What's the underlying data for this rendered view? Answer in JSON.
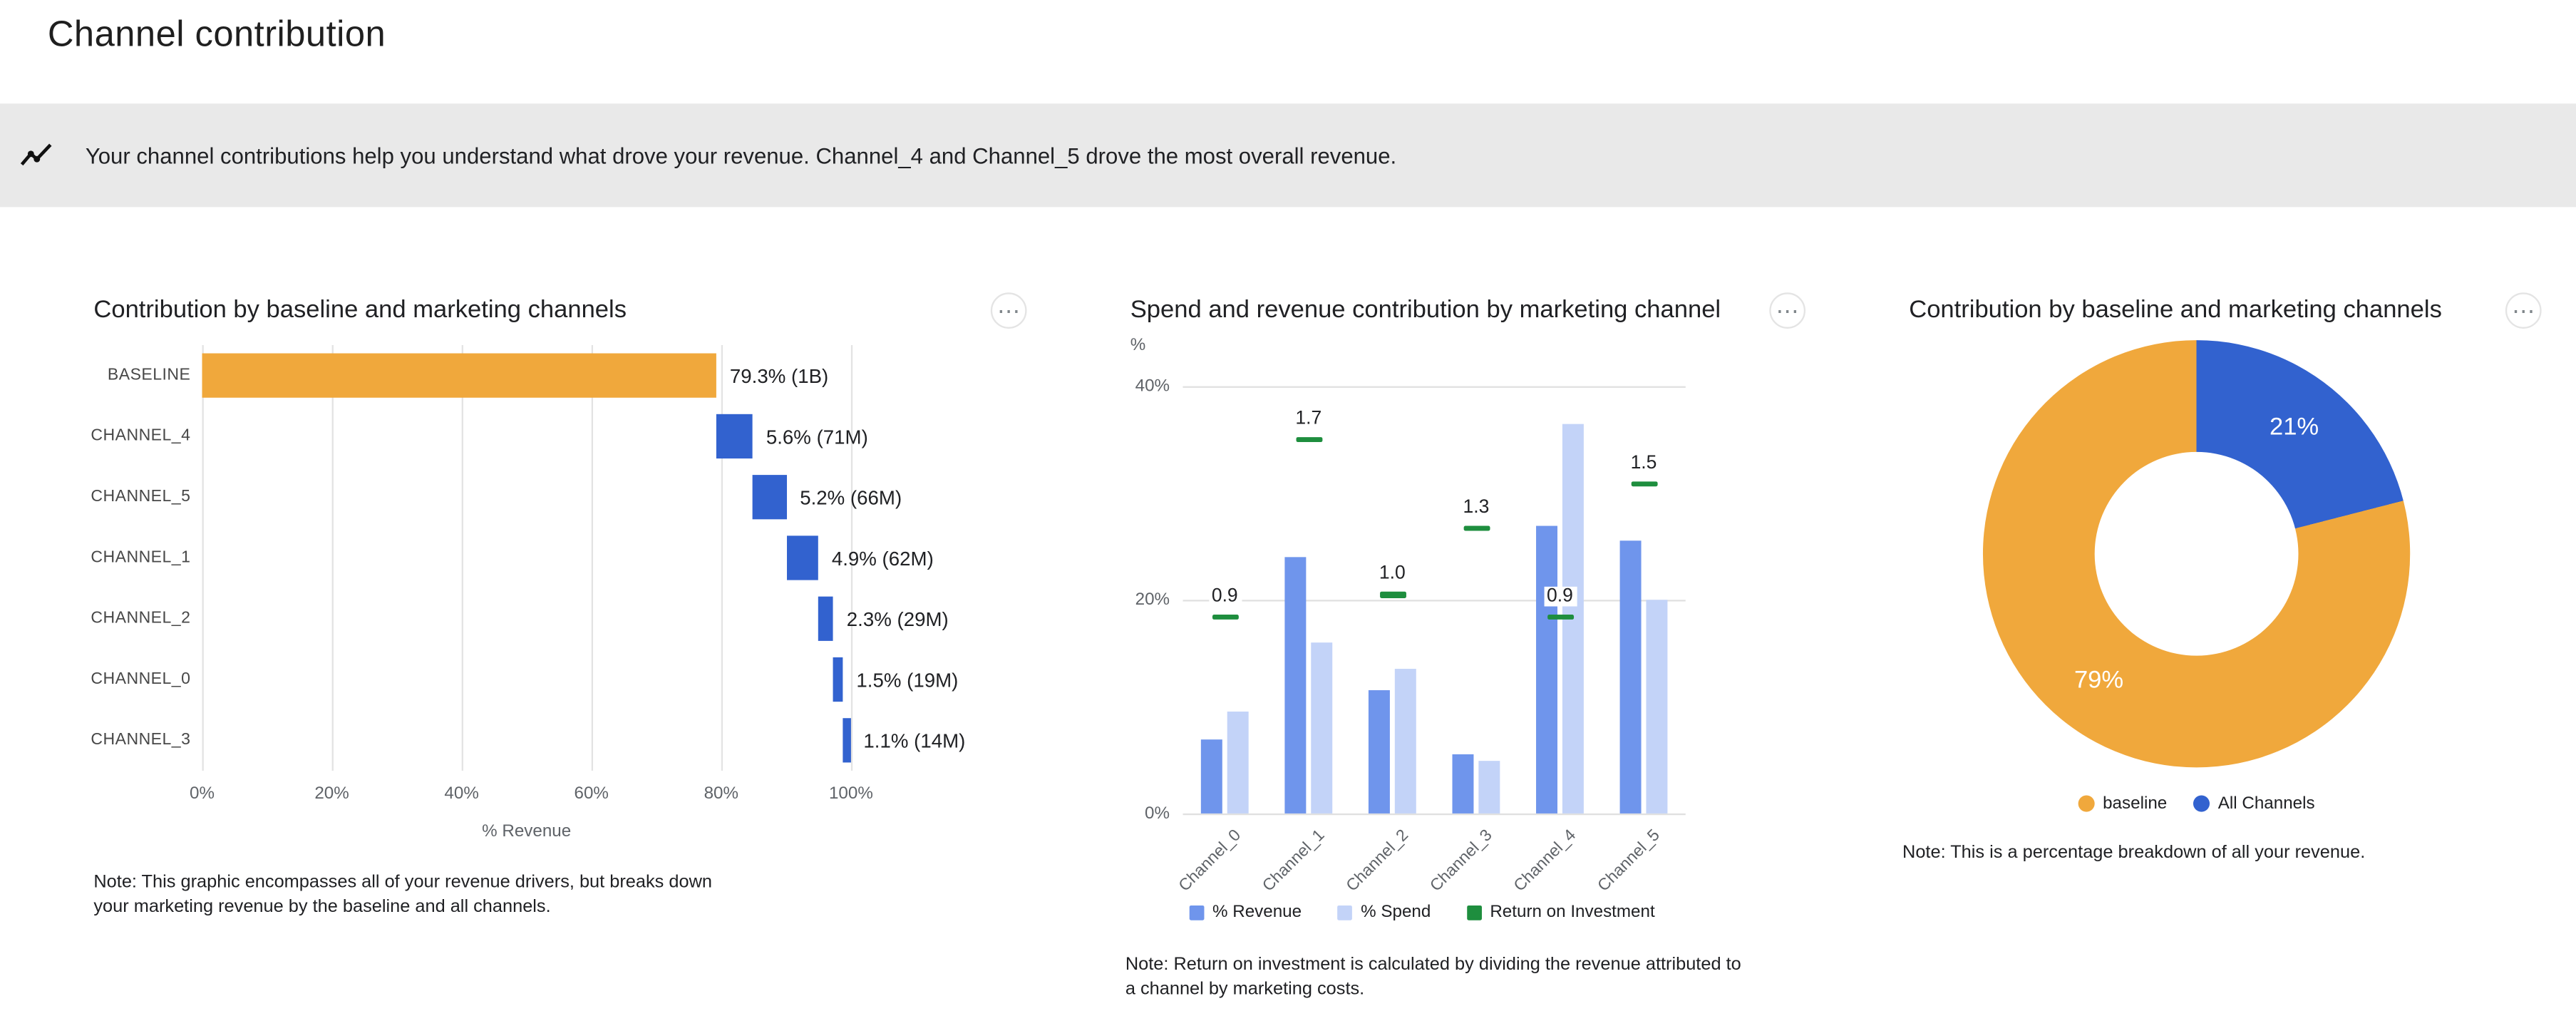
{
  "page_title": "Channel contribution",
  "menu_icon": "⋯",
  "banner": {
    "icon": "insights-icon",
    "text": "Your channel contributions help you understand what drove your revenue. Channel_4 and Channel_5 drove the most overall revenue."
  },
  "chart_data": [
    {
      "id": "waterfall",
      "type": "bar",
      "subtype": "horizontal-waterfall",
      "title": "Contribution by baseline and marketing channels",
      "xlabel": "% Revenue",
      "xlim": [
        0,
        100
      ],
      "x_ticks": [
        0,
        20,
        40,
        60,
        80,
        100
      ],
      "x_tick_labels": [
        "0%",
        "20%",
        "40%",
        "60%",
        "80%",
        "100%"
      ],
      "segments": [
        {
          "label": "BASELINE",
          "start": 0,
          "end": 79.3,
          "value_label": "79.3% (1B)",
          "color": "#F0A83C"
        },
        {
          "label": "CHANNEL_4",
          "start": 79.3,
          "end": 84.9,
          "value_label": "5.6% (71M)",
          "color": "#3262CF"
        },
        {
          "label": "CHANNEL_5",
          "start": 84.9,
          "end": 90.1,
          "value_label": "5.2% (66M)",
          "color": "#3262CF"
        },
        {
          "label": "CHANNEL_1",
          "start": 90.1,
          "end": 95.0,
          "value_label": "4.9% (62M)",
          "color": "#3262CF"
        },
        {
          "label": "CHANNEL_2",
          "start": 95.0,
          "end": 97.3,
          "value_label": "2.3% (29M)",
          "color": "#3262CF"
        },
        {
          "label": "CHANNEL_0",
          "start": 97.3,
          "end": 98.8,
          "value_label": "1.5% (19M)",
          "color": "#3262CF"
        },
        {
          "label": "CHANNEL_3",
          "start": 98.8,
          "end": 99.9,
          "value_label": "1.1% (14M)",
          "color": "#3262CF"
        }
      ],
      "note": "Note: This graphic encompasses all of your revenue drivers, but breaks down your marketing revenue by the baseline and all channels."
    },
    {
      "id": "grouped-bars",
      "type": "bar",
      "title": "Spend and revenue contribution by marketing channel",
      "y_unit": "%",
      "ylim": [
        0,
        40
      ],
      "y_ticks": [
        0,
        20,
        40
      ],
      "y_tick_labels": [
        "0%",
        "20%",
        "40%"
      ],
      "categories": [
        "Channel_0",
        "Channel_1",
        "Channel_2",
        "Channel_3",
        "Channel_4",
        "Channel_5"
      ],
      "series": [
        {
          "name": "% Revenue",
          "color": "#6F95EC",
          "values": [
            7,
            24,
            11.5,
            5.5,
            27,
            25.5
          ]
        },
        {
          "name": "% Spend",
          "color": "#C3D3F8",
          "values": [
            9.5,
            16,
            13.5,
            5,
            36.5,
            20
          ]
        },
        {
          "name": "Return on Investment",
          "color": "#1E8E3E",
          "render": "marker",
          "values": [
            0.9,
            1.7,
            1.0,
            1.3,
            0.9,
            1.5
          ],
          "labels": [
            "0.9",
            "1.7",
            "1.0",
            "1.3",
            "0.9",
            "1.5"
          ]
        }
      ],
      "legend_position": "bottom",
      "note": "Note: Return on investment is calculated by dividing the revenue attributed to a channel by marketing costs."
    },
    {
      "id": "donut",
      "type": "pie",
      "title": "Contribution by baseline and marketing channels",
      "slices": [
        {
          "name": "All Channels",
          "value": 21,
          "label": "21%",
          "color": "#3262CF"
        },
        {
          "name": "baseline",
          "value": 79,
          "label": "79%",
          "color": "#F0A83C"
        }
      ],
      "legend": [
        {
          "name": "baseline",
          "color": "#F0A83C"
        },
        {
          "name": "All Channels",
          "color": "#3262CF"
        }
      ],
      "note": "Note: This is a percentage breakdown of all your revenue."
    }
  ]
}
